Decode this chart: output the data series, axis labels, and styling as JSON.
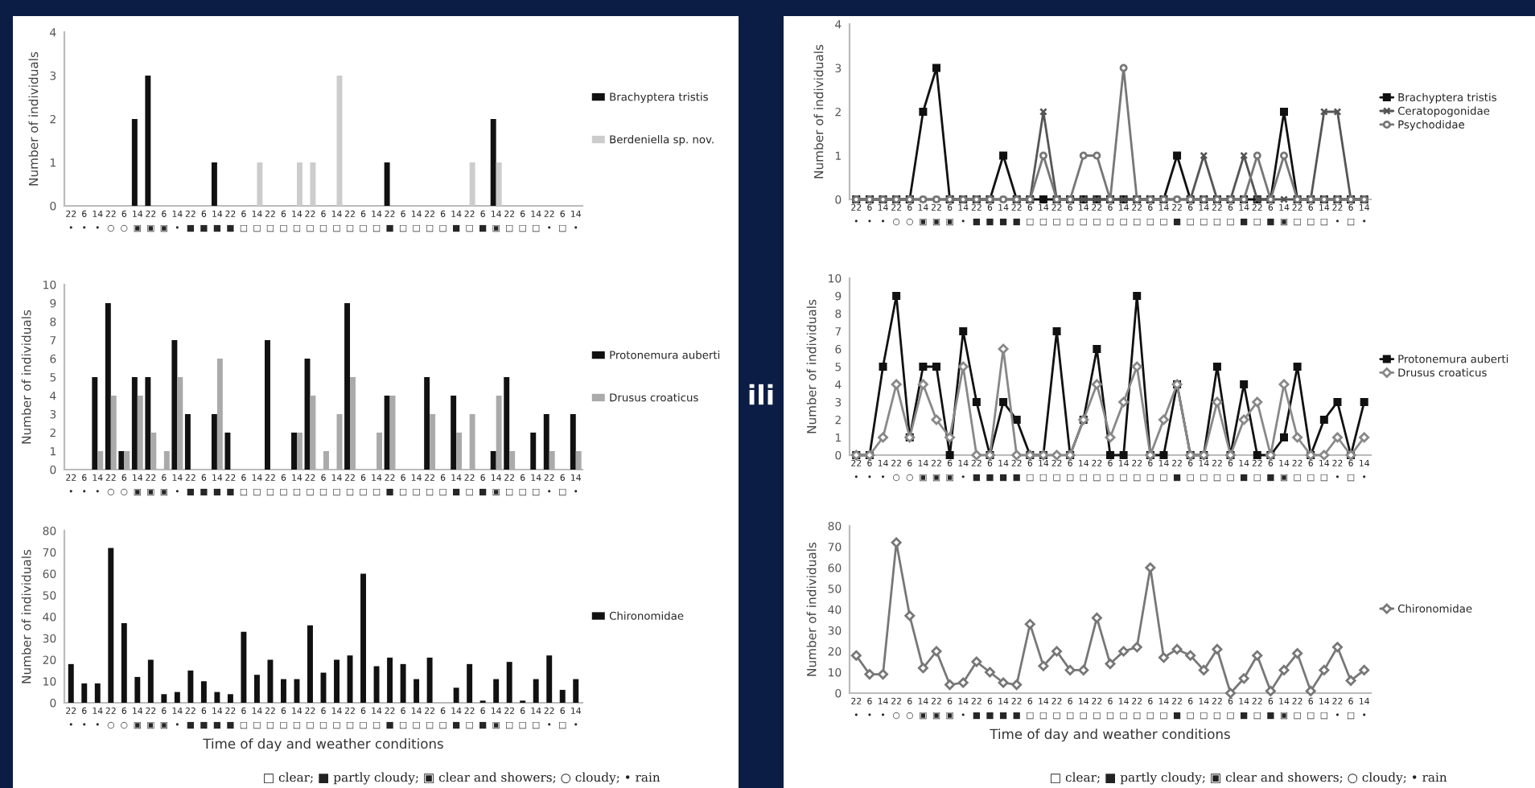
{
  "chart_data": [
    {
      "type": "bar",
      "ylabel": "Number of individuals",
      "categories": [
        "22\n•",
        "6\n•",
        "14\n•",
        "22\n○",
        "6\n○",
        "14\n▣",
        "22\n▣",
        "6\n▣",
        "14\n•",
        "22\n■",
        "6\n■",
        "14\n■",
        "22\n■",
        "6\n□",
        "14\n□",
        "22\n□",
        "6\n□",
        "14\n□",
        "22\n□",
        "6\n□",
        "14\n□",
        "22\n□",
        "6\n□",
        "14\n□",
        "22\n■",
        "6\n□",
        "14\n□",
        "22\n□",
        "6\n□",
        "14\n■",
        "22\n□",
        "6\n■",
        "14\n▣",
        "22\n□",
        "6\n□",
        "14\n□",
        "22\n•",
        "6\n□",
        "14\n•"
      ],
      "ylim": [
        0,
        4
      ],
      "yticks": [
        0,
        1,
        2,
        3,
        4
      ],
      "legend": "right",
      "grid": false,
      "series": [
        {
          "name": "Brachyptera tristis",
          "color": "#111111",
          "values": [
            0,
            0,
            0,
            0,
            0,
            2,
            3,
            0,
            0,
            0,
            0,
            1,
            0,
            0,
            0,
            0,
            0,
            0,
            0,
            0,
            0,
            0,
            0,
            0,
            1,
            0,
            0,
            0,
            0,
            0,
            0,
            0,
            2,
            0,
            0,
            0,
            0,
            0,
            0
          ]
        },
        {
          "name": "Berdeniella sp. nov.",
          "color": "#cccccc",
          "values": [
            0,
            0,
            0,
            0,
            0,
            0,
            0,
            0,
            0,
            0,
            0,
            0,
            0,
            0,
            1,
            0,
            0,
            1,
            1,
            0,
            3,
            0,
            0,
            0,
            0,
            0,
            0,
            0,
            0,
            0,
            1,
            0,
            1,
            0,
            0,
            0,
            0,
            0,
            0
          ]
        }
      ]
    },
    {
      "type": "bar",
      "ylabel": "Number of individuals",
      "categories": [
        "22\n•",
        "6\n•",
        "14\n•",
        "22\n○",
        "6\n○",
        "14\n▣",
        "22\n▣",
        "6\n▣",
        "14\n•",
        "22\n■",
        "6\n■",
        "14\n■",
        "22\n■",
        "6\n□",
        "14\n□",
        "22\n□",
        "6\n□",
        "14\n□",
        "22\n□",
        "6\n□",
        "14\n□",
        "22\n□",
        "6\n□",
        "14\n□",
        "22\n■",
        "6\n□",
        "14\n□",
        "22\n□",
        "6\n□",
        "14\n■",
        "22\n□",
        "6\n■",
        "14\n▣",
        "22\n□",
        "6\n□",
        "14\n□",
        "22\n•",
        "6\n□",
        "14\n•"
      ],
      "ylim": [
        0,
        10
      ],
      "yticks": [
        0,
        1,
        2,
        3,
        4,
        5,
        6,
        7,
        8,
        9,
        10
      ],
      "legend": "right",
      "grid": false,
      "annotations": [
        "ili"
      ],
      "series": [
        {
          "name": "Protonemura auberti",
          "color": "#111111",
          "values": [
            0,
            0,
            5,
            9,
            1,
            5,
            5,
            0,
            7,
            3,
            0,
            3,
            2,
            0,
            0,
            7,
            0,
            2,
            6,
            0,
            0,
            9,
            0,
            0,
            4,
            0,
            0,
            5,
            0,
            4,
            0,
            0,
            1,
            5,
            0,
            2,
            3,
            0,
            3
          ]
        },
        {
          "name": "Drusus croaticus",
          "color": "#aaaaaa",
          "values": [
            0,
            0,
            1,
            4,
            1,
            4,
            2,
            1,
            5,
            0,
            0,
            6,
            0,
            0,
            0,
            0,
            0,
            2,
            4,
            1,
            3,
            5,
            0,
            2,
            4,
            0,
            0,
            3,
            0,
            2,
            3,
            0,
            4,
            1,
            0,
            0,
            1,
            0,
            1
          ]
        }
      ]
    },
    {
      "type": "bar",
      "ylabel": "Number of individuals",
      "xlabel": "Time of day and weather conditions",
      "categories": [
        "22\n•",
        "6\n•",
        "14\n•",
        "22\n○",
        "6\n○",
        "14\n▣",
        "22\n▣",
        "6\n▣",
        "14\n•",
        "22\n■",
        "6\n■",
        "14\n■",
        "22\n■",
        "6\n□",
        "14\n□",
        "22\n□",
        "6\n□",
        "14\n□",
        "22\n□",
        "6\n□",
        "14\n□",
        "22\n□",
        "6\n□",
        "14\n□",
        "22\n■",
        "6\n□",
        "14\n□",
        "22\n□",
        "6\n□",
        "14\n■",
        "22\n□",
        "6\n■",
        "14\n▣",
        "22\n□",
        "6\n□",
        "14\n□",
        "22\n•",
        "6\n□",
        "14\n•"
      ],
      "ylim": [
        0,
        80
      ],
      "yticks": [
        0,
        10,
        20,
        30,
        40,
        50,
        60,
        70,
        80
      ],
      "legend": "right",
      "grid": false,
      "annotations": [
        "□ clear; ■ partly cloudy; ▣ clear and showers; ○ cloudy; • rain"
      ],
      "series": [
        {
          "name": "Chironomidae",
          "color": "#111111",
          "values": [
            18,
            9,
            9,
            72,
            37,
            12,
            20,
            4,
            5,
            15,
            10,
            5,
            4,
            33,
            13,
            20,
            11,
            11,
            36,
            14,
            20,
            22,
            60,
            17,
            21,
            18,
            11,
            21,
            0,
            7,
            18,
            1,
            11,
            19,
            1,
            11,
            22,
            6,
            11
          ]
        }
      ]
    },
    {
      "type": "line",
      "ylabel": "Number of individuals",
      "categories": [
        "22\n•",
        "6\n•",
        "14\n•",
        "22\n○",
        "6\n○",
        "14\n▣",
        "22\n▣",
        "6\n▣",
        "14\n•",
        "22\n■",
        "6\n■",
        "14\n■",
        "22\n■",
        "6\n□",
        "14\n□",
        "22\n□",
        "6\n□",
        "14\n□",
        "22\n□",
        "6\n□",
        "14\n□",
        "22\n□",
        "6\n□",
        "14\n□",
        "22\n■",
        "6\n□",
        "14\n□",
        "22\n□",
        "6\n□",
        "14\n■",
        "22\n□",
        "6\n■",
        "14\n▣",
        "22\n□",
        "6\n□",
        "14\n□",
        "22\n•",
        "6\n□",
        "14\n•"
      ],
      "ylim": [
        0,
        4
      ],
      "yticks": [
        0,
        1,
        2,
        3,
        4
      ],
      "legend": "right",
      "grid": false,
      "line_style": "solid",
      "series": [
        {
          "name": "Brachyptera tristis",
          "color": "#111111",
          "marker": "square",
          "values": [
            0,
            0,
            0,
            0,
            0,
            2,
            3,
            0,
            0,
            0,
            0,
            1,
            0,
            0,
            0,
            0,
            0,
            0,
            0,
            0,
            0,
            0,
            0,
            0,
            1,
            0,
            0,
            0,
            0,
            0,
            0,
            0,
            2,
            0,
            0,
            0,
            0,
            0,
            0
          ]
        },
        {
          "name": "Ceratopogonidae",
          "color": "#555555",
          "marker": "cross",
          "values": [
            0,
            0,
            0,
            0,
            0,
            0,
            0,
            0,
            0,
            0,
            0,
            0,
            0,
            0,
            2,
            0,
            0,
            0,
            0,
            0,
            0,
            0,
            0,
            0,
            0,
            0,
            1,
            0,
            0,
            1,
            0,
            0,
            0,
            0,
            0,
            2,
            2,
            0,
            0
          ]
        },
        {
          "name": "Psychodidae",
          "color": "#777777",
          "marker": "circle",
          "values": [
            0,
            0,
            0,
            0,
            0,
            0,
            0,
            0,
            0,
            0,
            0,
            0,
            0,
            0,
            1,
            0,
            0,
            1,
            1,
            0,
            3,
            0,
            0,
            0,
            0,
            0,
            0,
            0,
            0,
            0,
            1,
            0,
            1,
            0,
            0,
            0,
            0,
            0,
            0
          ]
        }
      ]
    },
    {
      "type": "line",
      "ylabel": "Number of individuals",
      "categories": [
        "22\n•",
        "6\n•",
        "14\n•",
        "22\n○",
        "6\n○",
        "14\n▣",
        "22\n▣",
        "6\n▣",
        "14\n•",
        "22\n■",
        "6\n■",
        "14\n■",
        "22\n■",
        "6\n□",
        "14\n□",
        "22\n□",
        "6\n□",
        "14\n□",
        "22\n□",
        "6\n□",
        "14\n□",
        "22\n□",
        "6\n□",
        "14\n□",
        "22\n■",
        "6\n□",
        "14\n□",
        "22\n□",
        "6\n□",
        "14\n■",
        "22\n□",
        "6\n■",
        "14\n▣",
        "22\n□",
        "6\n□",
        "14\n□",
        "22\n•",
        "6\n□",
        "14\n•"
      ],
      "ylim": [
        0,
        10
      ],
      "yticks": [
        0,
        1,
        2,
        3,
        4,
        5,
        6,
        7,
        8,
        9,
        10
      ],
      "legend": "right",
      "grid": false,
      "line_style": "solid",
      "series": [
        {
          "name": "Protonemura auberti",
          "color": "#111111",
          "marker": "square",
          "values": [
            0,
            0,
            5,
            9,
            1,
            5,
            5,
            0,
            7,
            3,
            0,
            3,
            2,
            0,
            0,
            7,
            0,
            2,
            6,
            0,
            0,
            9,
            0,
            0,
            4,
            0,
            0,
            5,
            0,
            4,
            0,
            0,
            1,
            5,
            0,
            2,
            3,
            0,
            3
          ]
        },
        {
          "name": "Drusus croaticus",
          "color": "#888888",
          "marker": "diamond",
          "values": [
            0,
            0,
            1,
            4,
            1,
            4,
            2,
            1,
            5,
            0,
            0,
            6,
            0,
            0,
            0,
            0,
            0,
            2,
            4,
            1,
            3,
            5,
            0,
            2,
            4,
            0,
            0,
            3,
            0,
            2,
            3,
            0,
            4,
            1,
            0,
            0,
            1,
            0,
            1
          ]
        }
      ]
    },
    {
      "type": "line",
      "ylabel": "Number of individuals",
      "xlabel": "Time of day and weather conditions",
      "categories": [
        "22\n•",
        "6\n•",
        "14\n•",
        "22\n○",
        "6\n○",
        "14\n▣",
        "22\n▣",
        "6\n▣",
        "14\n•",
        "22\n■",
        "6\n■",
        "14\n■",
        "22\n■",
        "6\n□",
        "14\n□",
        "22\n□",
        "6\n□",
        "14\n□",
        "22\n□",
        "6\n□",
        "14\n□",
        "22\n□",
        "6\n□",
        "14\n□",
        "22\n■",
        "6\n□",
        "14\n□",
        "22\n□",
        "6\n□",
        "14\n■",
        "22\n□",
        "6\n■",
        "14\n▣",
        "22\n□",
        "6\n□",
        "14\n□",
        "22\n•",
        "6\n□",
        "14\n•"
      ],
      "ylim": [
        0,
        80
      ],
      "yticks": [
        0,
        10,
        20,
        30,
        40,
        50,
        60,
        70,
        80
      ],
      "legend": "right",
      "grid": false,
      "line_style": "solid",
      "annotations": [
        "□ clear; ■ partly cloudy; ▣ clear and showers; ○ cloudy; • rain"
      ],
      "series": [
        {
          "name": "Chironomidae",
          "color": "#777777",
          "marker": "diamond",
          "values": [
            18,
            9,
            9,
            72,
            37,
            12,
            20,
            4,
            5,
            15,
            10,
            5,
            4,
            33,
            13,
            20,
            11,
            11,
            36,
            14,
            20,
            22,
            60,
            17,
            21,
            18,
            11,
            21,
            0,
            7,
            18,
            1,
            11,
            19,
            1,
            11,
            22,
            6,
            11
          ]
        }
      ]
    }
  ]
}
